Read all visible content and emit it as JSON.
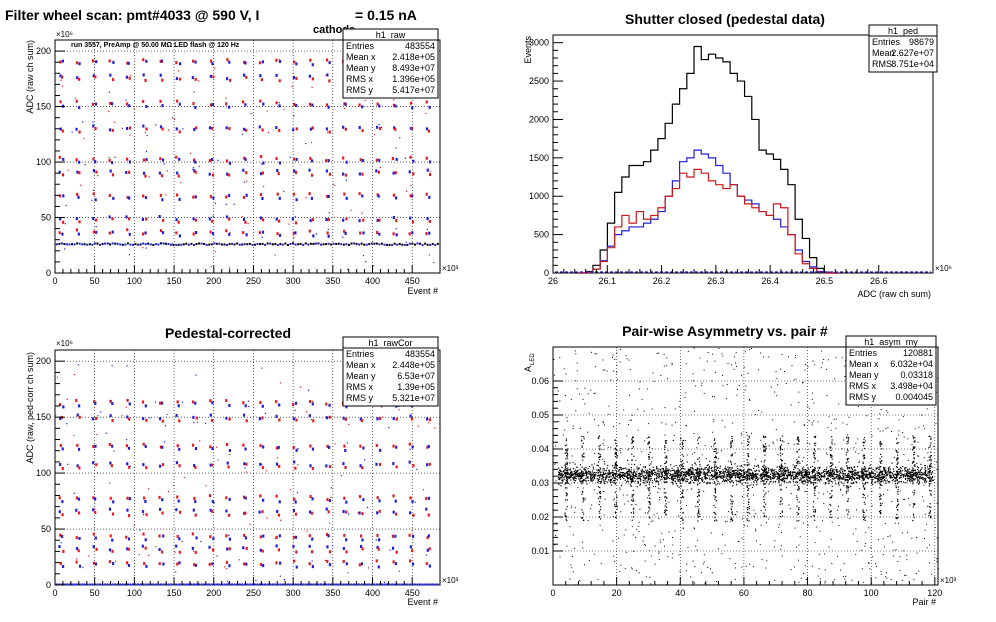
{
  "chart_data": [
    {
      "id": "raw",
      "type": "scatter",
      "title_parts": [
        "Filter wheel scan: pmt#4033 @   590 V, I",
        "cathode",
        "= 0.15 nA"
      ],
      "annotation": "run 3557, PreAmp @ 50.00 MΩ LED flash @  120 Hz",
      "xlabel": "Event #",
      "ylabel": "ADC (raw ch sum)",
      "x_exponent": "×10³",
      "y_exponent": "×10⁶",
      "xlim": [
        0,
        485
      ],
      "ylim": [
        0,
        210
      ],
      "xticks": [
        0,
        50,
        100,
        150,
        200,
        250,
        300,
        350,
        400,
        450
      ],
      "yticks": [
        0,
        50,
        100,
        150,
        200
      ],
      "grid": true,
      "stats": {
        "title": "h1_raw",
        "rows": [
          [
            "Entries",
            "483554"
          ],
          [
            "Mean x",
            "2.418e+05"
          ],
          [
            "Mean y",
            "8.493e+07"
          ],
          [
            "RMS x",
            "1.396e+05"
          ],
          [
            "RMS y",
            "5.417e+07"
          ]
        ]
      },
      "pattern": {
        "period": 21,
        "start": 8,
        "baseline": 26,
        "levels": [
          191,
          177,
          153,
          131,
          103,
          91,
          70,
          49,
          37
        ],
        "colors": {
          "red": "#e8191c",
          "blue": "#1f1fd6",
          "black": "#000000"
        }
      }
    },
    {
      "id": "ped",
      "type": "histogram",
      "title": "Shutter closed (pedestal data)",
      "xlabel": "ADC (raw ch sum)",
      "ylabel": "Events",
      "x_exponent": "×10⁶",
      "xlim": [
        26.0,
        26.7
      ],
      "ylim": [
        0,
        3100
      ],
      "xticks": [
        26,
        26.1,
        26.2,
        26.3,
        26.4,
        26.5,
        26.6
      ],
      "yticks": [
        0,
        500,
        1000,
        1500,
        2000,
        2500,
        3000
      ],
      "bin_width": 0.0133,
      "bin_start": 26.047,
      "grid": false,
      "stats": {
        "title": "h1_ped",
        "rows": [
          [
            "Entries",
            "98679"
          ],
          [
            "Mean",
            "2.627e+07"
          ],
          [
            "RMS",
            "8.751e+04"
          ]
        ]
      },
      "series": [
        {
          "name": "sum",
          "color": "#000000",
          "values": [
            0,
            20,
            100,
            300,
            650,
            1050,
            1250,
            1400,
            1400,
            1450,
            1600,
            1750,
            1950,
            2200,
            2400,
            2600,
            2950,
            2780,
            2850,
            2800,
            2750,
            2600,
            2500,
            2300,
            2000,
            1600,
            1550,
            1480,
            1350,
            1150,
            700,
            450,
            200,
            60,
            10,
            0
          ]
        },
        {
          "name": "blue",
          "color": "#1f1fd6",
          "values": [
            0,
            10,
            50,
            160,
            350,
            500,
            550,
            600,
            600,
            650,
            700,
            800,
            1000,
            1200,
            1450,
            1500,
            1600,
            1550,
            1500,
            1400,
            1300,
            1150,
            1000,
            950,
            900,
            800,
            750,
            700,
            600,
            500,
            300,
            150,
            80,
            20,
            0,
            0
          ]
        },
        {
          "name": "red",
          "color": "#cc1a1a",
          "values": [
            0,
            10,
            50,
            150,
            330,
            600,
            750,
            650,
            800,
            700,
            750,
            850,
            1000,
            1100,
            1300,
            1250,
            1350,
            1300,
            1200,
            1150,
            1100,
            1150,
            1000,
            900,
            850,
            800,
            750,
            900,
            850,
            500,
            250,
            120,
            60,
            15,
            0,
            0
          ]
        }
      ]
    },
    {
      "id": "rawCor",
      "type": "scatter",
      "title": "Pedestal-corrected",
      "xlabel": "Event #",
      "ylabel": "ADC (raw, ped-corr ch sum)",
      "x_exponent": "×10³",
      "y_exponent": "×10⁶",
      "xlim": [
        0,
        485
      ],
      "ylim": [
        0,
        210
      ],
      "xticks": [
        0,
        50,
        100,
        150,
        200,
        250,
        300,
        350,
        400,
        450
      ],
      "yticks": [
        0,
        50,
        100,
        150,
        200
      ],
      "grid": true,
      "stats": {
        "title": "h1_rawCor",
        "rows": [
          [
            "Entries",
            "483554"
          ],
          [
            "Mean x",
            "2.448e+05"
          ],
          [
            "Mean y",
            "6.53e+07"
          ],
          [
            "RMS x",
            "1.39e+05"
          ],
          [
            "RMS y",
            "5.321e+07"
          ]
        ]
      },
      "pattern": {
        "period": 21,
        "start": 8,
        "baseline": 0,
        "levels": [
          163,
          150,
          124,
          108,
          78,
          66,
          44,
          33,
          20
        ],
        "colors": {
          "red": "#e8191c",
          "blue": "#1f1fd6",
          "black": "#000000"
        }
      }
    },
    {
      "id": "asym",
      "type": "scatter",
      "title": "Pair-wise Asymmetry vs. pair #",
      "xlabel": "Pair #",
      "ylabel": "A_LED",
      "ylabel_main": "A",
      "ylabel_sub": "LED",
      "x_exponent": "×10³",
      "xlim": [
        0,
        121
      ],
      "ylim": [
        0,
        0.07
      ],
      "xticks": [
        0,
        20,
        40,
        60,
        80,
        100,
        120
      ],
      "yticks": [
        0.01,
        0.02,
        0.03,
        0.04,
        0.05,
        0.06
      ],
      "grid": true,
      "stats": {
        "title": "h1_asym_my",
        "rows": [
          [
            "Entries",
            "120881"
          ],
          [
            "Mean x",
            "6.032e+04"
          ],
          [
            "Mean y",
            "0.03318"
          ],
          [
            "RMS x",
            "3.498e+04"
          ],
          [
            "RMS y",
            "0.004045"
          ]
        ]
      },
      "band": {
        "center": 0.0325,
        "halfwidth": 0.0022
      },
      "spikes": {
        "period": 5.2,
        "start": 4,
        "high": 0.044,
        "low": 0.019
      }
    }
  ]
}
